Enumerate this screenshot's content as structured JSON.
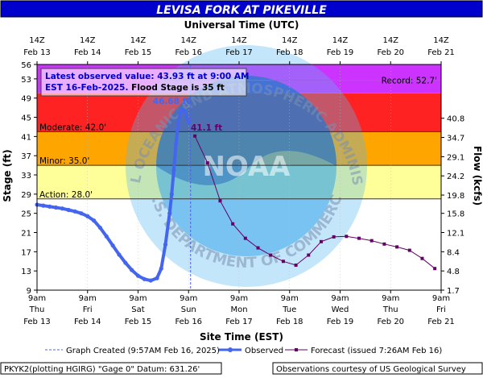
{
  "title": "LEVISA FORK AT PIKEVILLE",
  "top_axis_title": "Universal Time (UTC)",
  "bottom_axis_title": "Site Time (EST)",
  "left_axis_title": "Stage (ft)",
  "right_axis_title": "Flow (kcfs)",
  "info_box": {
    "line1": "Latest observed value: 43.93 ft at 9:00 AM",
    "line2a": "EST 16-Feb-2025.",
    "line2b": " Flood Stage is 35 ft"
  },
  "thresholds": [
    {
      "name": "Record",
      "label": "Record: 52.7'",
      "value": 52.7,
      "color": "#808080"
    },
    {
      "name": "Moderate",
      "label": "Moderate: 42.0'",
      "value": 42.0,
      "color": "#333333"
    },
    {
      "name": "Minor",
      "label": "Minor: 35.0'",
      "value": 35.0,
      "color": "#333333"
    },
    {
      "name": "Action",
      "label": "Action: 28.0'",
      "value": 28.0,
      "color": "#333333"
    }
  ],
  "bands": [
    {
      "name": "action",
      "from": 28,
      "to": 35,
      "color": "#ffff99"
    },
    {
      "name": "minor",
      "from": 35,
      "to": 42,
      "color": "#ffa500"
    },
    {
      "name": "moderate",
      "from": 42,
      "to": 50,
      "color": "#ff2222"
    },
    {
      "name": "major",
      "from": 50,
      "to": 56,
      "color": "#cc33ff"
    }
  ],
  "peak_label": "46.68 ft",
  "forecast_label": "41.1 ft",
  "footer": {
    "legend_created": "Graph Created (9:57AM Feb 16, 2025)",
    "legend_observed": "Observed",
    "legend_forecast": "Forecast (issued 7:26AM Feb 16)",
    "datum": "PKYK2(plotting HGIRG) \"Gage 0\" Datum: 631.26'",
    "courtesy": "Observations courtesy of US Geological Survey"
  },
  "watermark": {
    "top_text": "NATIONAL OCEANIC AND ATMOSPHERIC ADMINISTRATION",
    "bottom_text": "U.S. DEPARTMENT OF COMMERCE",
    "center_text": "NOAA"
  },
  "chart_data": {
    "type": "line",
    "title": "LEVISA FORK AT PIKEVILLE",
    "xlabel": "Site Time (EST)",
    "ylabel": "Stage (ft)",
    "y2label": "Flow (kcfs)",
    "x2label": "Universal Time (UTC)",
    "ylim": [
      9,
      56
    ],
    "xlim": [
      "2025-02-13 09:00",
      "2025-02-21 09:00"
    ],
    "y_ticks": [
      9,
      13,
      17,
      21,
      25,
      29,
      33,
      37,
      41,
      45,
      49,
      53,
      56
    ],
    "y2_ticks": [
      {
        "stage": 9,
        "label": "1.7"
      },
      {
        "stage": 13,
        "label": "4.8"
      },
      {
        "stage": 17,
        "label": "8.4"
      },
      {
        "stage": 21,
        "label": "12.1"
      },
      {
        "stage": 25,
        "label": "15.8"
      },
      {
        "stage": 28.8,
        "label": "19.8"
      },
      {
        "stage": 32.8,
        "label": "24.2"
      },
      {
        "stage": 36.8,
        "label": "29.1"
      },
      {
        "stage": 40.8,
        "label": "34.7"
      },
      {
        "stage": 44.8,
        "label": "40.8"
      }
    ],
    "x_ticks_bottom": [
      {
        "top": "9am",
        "mid": "Thu",
        "bot": "Feb 13"
      },
      {
        "top": "9am",
        "mid": "Fri",
        "bot": "Feb 14"
      },
      {
        "top": "9am",
        "mid": "Sat",
        "bot": "Feb 15"
      },
      {
        "top": "9am",
        "mid": "Sun",
        "bot": "Feb 16"
      },
      {
        "top": "9am",
        "mid": "Mon",
        "bot": "Feb 17"
      },
      {
        "top": "9am",
        "mid": "Tue",
        "bot": "Feb 18"
      },
      {
        "top": "9am",
        "mid": "Wed",
        "bot": "Feb 19"
      },
      {
        "top": "9am",
        "mid": "Thu",
        "bot": "Feb 20"
      },
      {
        "top": "9am",
        "mid": "Fri",
        "bot": "Feb 21"
      }
    ],
    "x_ticks_top": [
      {
        "top": "14Z",
        "bot": "Feb 13"
      },
      {
        "top": "14Z",
        "bot": "Feb 14"
      },
      {
        "top": "14Z",
        "bot": "Feb 15"
      },
      {
        "top": "14Z",
        "bot": "Feb 16"
      },
      {
        "top": "14Z",
        "bot": "Feb 17"
      },
      {
        "top": "14Z",
        "bot": "Feb 18"
      },
      {
        "top": "14Z",
        "bot": "Feb 19"
      },
      {
        "top": "14Z",
        "bot": "Feb 20"
      },
      {
        "top": "14Z",
        "bot": "Feb 21"
      }
    ],
    "graph_created": "2025-02-16 09:57",
    "series": [
      {
        "name": "Observed",
        "color": "#4466ee",
        "points": [
          [
            "2025-02-13 09:00",
            26.8
          ],
          [
            "2025-02-13 12:00",
            26.6
          ],
          [
            "2025-02-13 15:00",
            26.4
          ],
          [
            "2025-02-13 18:00",
            26.2
          ],
          [
            "2025-02-13 21:00",
            26.0
          ],
          [
            "2025-02-14 00:00",
            25.7
          ],
          [
            "2025-02-14 03:00",
            25.4
          ],
          [
            "2025-02-14 06:00",
            25.0
          ],
          [
            "2025-02-14 09:00",
            24.4
          ],
          [
            "2025-02-14 12:00",
            23.5
          ],
          [
            "2025-02-14 15:00",
            22.0
          ],
          [
            "2025-02-14 18:00",
            20.2
          ],
          [
            "2025-02-14 21:00",
            18.3
          ],
          [
            "2025-02-15 00:00",
            16.4
          ],
          [
            "2025-02-15 03:00",
            14.7
          ],
          [
            "2025-02-15 06:00",
            13.2
          ],
          [
            "2025-02-15 09:00",
            12.0
          ],
          [
            "2025-02-15 12:00",
            11.3
          ],
          [
            "2025-02-15 15:00",
            11.0
          ],
          [
            "2025-02-15 18:00",
            11.5
          ],
          [
            "2025-02-15 20:00",
            13.5
          ],
          [
            "2025-02-15 22:00",
            18.5
          ],
          [
            "2025-02-16 00:00",
            25.0
          ],
          [
            "2025-02-16 01:00",
            29.0
          ],
          [
            "2025-02-16 02:00",
            34.0
          ],
          [
            "2025-02-16 03:00",
            39.5
          ],
          [
            "2025-02-16 04:00",
            43.5
          ],
          [
            "2025-02-16 05:00",
            46.0
          ],
          [
            "2025-02-16 06:00",
            46.68
          ],
          [
            "2025-02-16 07:00",
            46.4
          ],
          [
            "2025-02-16 08:00",
            45.3
          ],
          [
            "2025-02-16 09:00",
            43.93
          ]
        ]
      },
      {
        "name": "Forecast",
        "color": "#660066",
        "points": [
          [
            "2025-02-16 12:00",
            41.1
          ],
          [
            "2025-02-16 18:00",
            35.5
          ],
          [
            "2025-02-17 00:00",
            27.6
          ],
          [
            "2025-02-17 06:00",
            22.8
          ],
          [
            "2025-02-17 12:00",
            19.8
          ],
          [
            "2025-02-17 18:00",
            17.8
          ],
          [
            "2025-02-18 00:00",
            16.3
          ],
          [
            "2025-02-18 06:00",
            15.0
          ],
          [
            "2025-02-18 12:00",
            14.2
          ],
          [
            "2025-02-18 18:00",
            16.3
          ],
          [
            "2025-02-19 00:00",
            19.1
          ],
          [
            "2025-02-19 06:00",
            20.1
          ],
          [
            "2025-02-19 12:00",
            20.2
          ],
          [
            "2025-02-19 18:00",
            19.8
          ],
          [
            "2025-02-20 00:00",
            19.3
          ],
          [
            "2025-02-20 06:00",
            18.6
          ],
          [
            "2025-02-20 12:00",
            18.0
          ],
          [
            "2025-02-20 18:00",
            17.3
          ],
          [
            "2025-02-21 00:00",
            15.6
          ],
          [
            "2025-02-21 06:00",
            13.5
          ]
        ]
      }
    ]
  }
}
